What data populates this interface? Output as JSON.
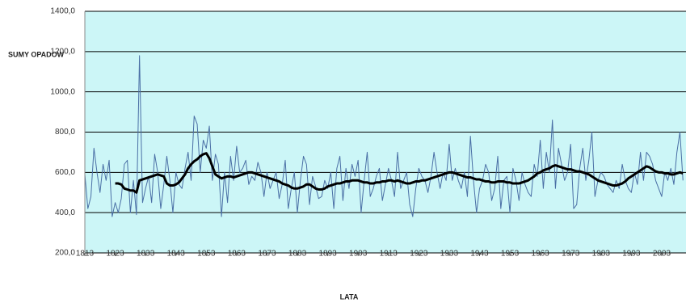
{
  "chart_data": {
    "type": "line",
    "y_label": "SUMY OPADOW",
    "x_label": "LATA",
    "x": [
      1813,
      1814,
      1815,
      1816,
      1817,
      1818,
      1819,
      1820,
      1821,
      1822,
      1823,
      1824,
      1825,
      1826,
      1827,
      1828,
      1829,
      1830,
      1831,
      1832,
      1833,
      1834,
      1835,
      1836,
      1837,
      1838,
      1839,
      1840,
      1841,
      1842,
      1843,
      1844,
      1845,
      1846,
      1847,
      1848,
      1849,
      1850,
      1851,
      1852,
      1853,
      1854,
      1855,
      1856,
      1857,
      1858,
      1859,
      1860,
      1861,
      1862,
      1863,
      1864,
      1865,
      1866,
      1867,
      1868,
      1869,
      1870,
      1871,
      1872,
      1873,
      1874,
      1875,
      1876,
      1877,
      1878,
      1879,
      1880,
      1881,
      1882,
      1883,
      1884,
      1885,
      1886,
      1887,
      1888,
      1889,
      1890,
      1891,
      1892,
      1893,
      1894,
      1895,
      1896,
      1897,
      1898,
      1899,
      1900,
      1901,
      1902,
      1903,
      1904,
      1905,
      1906,
      1907,
      1908,
      1909,
      1910,
      1911,
      1912,
      1913,
      1914,
      1915,
      1916,
      1917,
      1918,
      1919,
      1920,
      1921,
      1922,
      1923,
      1924,
      1925,
      1926,
      1927,
      1928,
      1929,
      1930,
      1931,
      1932,
      1933,
      1934,
      1935,
      1936,
      1937,
      1938,
      1939,
      1940,
      1941,
      1942,
      1943,
      1944,
      1945,
      1946,
      1947,
      1948,
      1949,
      1950,
      1951,
      1952,
      1953,
      1954,
      1955,
      1956,
      1957,
      1958,
      1959,
      1960,
      1961,
      1962,
      1963,
      1964,
      1965,
      1966,
      1967,
      1968,
      1969,
      1970,
      1971,
      1972,
      1973,
      1974,
      1975,
      1976,
      1977,
      1978,
      1979,
      1980,
      1981,
      1982,
      1983,
      1984,
      1985,
      1986,
      1987,
      1988,
      1989,
      1990,
      1991,
      1992,
      1993,
      1994,
      1995,
      1996,
      1997,
      1998,
      1999,
      2000,
      2001,
      2002,
      2003,
      2004,
      2005,
      2006,
      2007,
      2008,
      2009,
      2010
    ],
    "series": [
      {
        "color": "#4a6fa5",
        "width": 1,
        "values": [
          590,
          420,
          480,
          720,
          600,
          500,
          640,
          560,
          660,
          380,
          450,
          400,
          470,
          640,
          660,
          400,
          560,
          390,
          1180,
          450,
          520,
          580,
          450,
          690,
          600,
          420,
          540,
          680,
          560,
          400,
          600,
          540,
          520,
          620,
          700,
          560,
          880,
          840,
          600,
          760,
          720,
          830,
          560,
          690,
          640,
          380,
          600,
          450,
          680,
          560,
          730,
          600,
          620,
          660,
          540,
          580,
          560,
          650,
          600,
          480,
          600,
          520,
          560,
          600,
          470,
          540,
          660,
          420,
          520,
          600,
          400,
          560,
          680,
          640,
          440,
          580,
          530,
          470,
          480,
          560,
          520,
          600,
          420,
          620,
          680,
          460,
          620,
          520,
          640,
          580,
          660,
          400,
          560,
          700,
          480,
          520,
          580,
          620,
          460,
          540,
          620,
          560,
          480,
          700,
          520,
          560,
          600,
          440,
          380,
          520,
          620,
          580,
          560,
          500,
          580,
          700,
          600,
          520,
          600,
          560,
          740,
          560,
          620,
          560,
          520,
          600,
          480,
          780,
          560,
          400,
          520,
          560,
          640,
          600,
          460,
          520,
          680,
          420,
          560,
          580,
          400,
          620,
          560,
          460,
          600,
          540,
          500,
          480,
          640,
          580,
          760,
          520,
          700,
          600,
          860,
          520,
          720,
          640,
          560,
          600,
          740,
          420,
          440,
          620,
          720,
          560,
          660,
          800,
          480,
          560,
          600,
          580,
          540,
          520,
          500,
          560,
          520,
          640,
          560,
          520,
          500,
          600,
          540,
          700,
          560,
          700,
          680,
          640,
          560,
          520,
          480,
          600,
          560,
          620,
          540,
          700,
          800,
          560
        ]
      },
      {
        "color": "#000000",
        "width": 3,
        "values": [
          null,
          null,
          null,
          null,
          null,
          null,
          null,
          null,
          null,
          null,
          545,
          545,
          540,
          520,
          515,
          510,
          510,
          500,
          560,
          565,
          570,
          575,
          580,
          585,
          590,
          585,
          580,
          545,
          535,
          535,
          540,
          550,
          570,
          590,
          620,
          640,
          655,
          665,
          680,
          690,
          695,
          670,
          630,
          590,
          580,
          570,
          575,
          580,
          580,
          575,
          580,
          585,
          590,
          595,
          600,
          600,
          595,
          590,
          585,
          580,
          575,
          570,
          565,
          560,
          555,
          545,
          540,
          535,
          525,
          520,
          520,
          525,
          530,
          540,
          540,
          530,
          520,
          515,
          515,
          520,
          530,
          535,
          540,
          545,
          545,
          550,
          555,
          555,
          560,
          560,
          560,
          555,
          550,
          550,
          545,
          545,
          550,
          550,
          555,
          555,
          560,
          560,
          555,
          560,
          555,
          550,
          545,
          545,
          550,
          555,
          555,
          560,
          560,
          565,
          570,
          575,
          580,
          585,
          590,
          595,
          600,
          600,
          595,
          590,
          585,
          580,
          575,
          575,
          570,
          565,
          565,
          560,
          555,
          555,
          550,
          550,
          555,
          555,
          555,
          550,
          550,
          545,
          545,
          545,
          550,
          555,
          560,
          570,
          580,
          595,
          600,
          610,
          615,
          620,
          630,
          635,
          630,
          625,
          620,
          615,
          615,
          610,
          605,
          605,
          600,
          595,
          590,
          580,
          570,
          560,
          555,
          550,
          545,
          540,
          535,
          535,
          540,
          545,
          555,
          570,
          580,
          590,
          600,
          610,
          620,
          630,
          625,
          615,
          605,
          600,
          600,
          595,
          595,
          590,
          590,
          595,
          600,
          595
        ]
      }
    ],
    "xlim": [
      1813,
      2011
    ],
    "ylim": [
      200,
      1400
    ],
    "xticks": [
      1813,
      1823,
      1833,
      1843,
      1853,
      1863,
      1873,
      1883,
      1893,
      1903,
      1913,
      1923,
      1933,
      1943,
      1953,
      1963,
      1973,
      1983,
      1993,
      2003
    ],
    "yticks": [
      {
        "value": 200,
        "label": "200,0"
      },
      {
        "value": 400,
        "label": "400,0"
      },
      {
        "value": 600,
        "label": "600,0"
      },
      {
        "value": 800,
        "label": "800,0"
      },
      {
        "value": 1000,
        "label": "1000,0"
      },
      {
        "value": 1200,
        "label": "1200,0"
      },
      {
        "value": 1400,
        "label": "1400,0"
      }
    ],
    "grid": true,
    "plot_background": "#ccf6f7"
  }
}
